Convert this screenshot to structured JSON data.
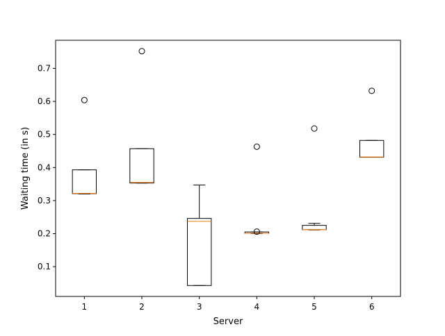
{
  "chart_data": {
    "type": "box",
    "title": "",
    "xlabel": "Server",
    "ylabel": "Waiting time (in s)",
    "categories": [
      "1",
      "2",
      "3",
      "4",
      "5",
      "6"
    ],
    "ylim": [
      0.01,
      0.785
    ],
    "yticks": [
      "0.1",
      "0.2",
      "0.3",
      "0.4",
      "0.5",
      "0.6",
      "0.7"
    ],
    "grid": false,
    "boxes": [
      {
        "label": "1",
        "whisker_low": 0.32,
        "q1": 0.321,
        "median": 0.322,
        "q3": 0.393,
        "whisker_high": 0.393,
        "fliers": [
          0.604
        ]
      },
      {
        "label": "2",
        "whisker_low": 0.353,
        "q1": 0.353,
        "median": 0.355,
        "q3": 0.457,
        "whisker_high": 0.457,
        "fliers": [
          0.752
        ]
      },
      {
        "label": "3",
        "whisker_low": 0.043,
        "q1": 0.043,
        "median": 0.237,
        "q3": 0.246,
        "whisker_high": 0.347,
        "fliers": []
      },
      {
        "label": "4",
        "whisker_low": 0.2,
        "q1": 0.201,
        "median": 0.201,
        "q3": 0.205,
        "whisker_high": 0.205,
        "fliers": [
          0.463,
          0.206
        ]
      },
      {
        "label": "5",
        "whisker_low": 0.211,
        "q1": 0.212,
        "median": 0.212,
        "q3": 0.225,
        "whisker_high": 0.231,
        "fliers": [
          0.518
        ]
      },
      {
        "label": "6",
        "whisker_low": 0.431,
        "q1": 0.431,
        "median": 0.432,
        "q3": 0.482,
        "whisker_high": 0.482,
        "fliers": [
          0.632
        ]
      }
    ],
    "colors": {
      "box": "#000000",
      "median": "#ff7f0e",
      "flier": "#000000"
    }
  }
}
